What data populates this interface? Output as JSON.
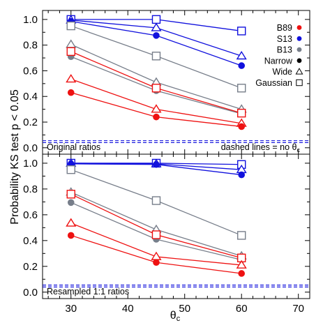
{
  "chart_data": {
    "type": "line",
    "x_axis": {
      "label_main": "θ",
      "label_sub": "c",
      "range": [
        25,
        72
      ],
      "ticks": [
        "30",
        "40",
        "50",
        "60",
        "70"
      ]
    },
    "y_axis": {
      "label": "Probability KS test p < 0.05",
      "range": [
        -0.05,
        1.07
      ],
      "ticks": [
        "0.0",
        "0.2",
        "0.4",
        "0.6",
        "0.8",
        "1.0"
      ]
    },
    "reference_line_y": [
      0.04,
      0.055
    ],
    "legend": {
      "placement": "top-right",
      "entries": [
        {
          "label": "B89",
          "marker": "filled-circle",
          "color": "#ee1111"
        },
        {
          "label": "S13",
          "marker": "filled-circle",
          "color": "#1111dd"
        },
        {
          "label": "B13",
          "marker": "filled-circle",
          "color": "#777e8a"
        },
        {
          "label": "Narrow",
          "marker": "filled-circle",
          "color": "#000000"
        },
        {
          "label": "Wide",
          "marker": "open-triangle",
          "color": "#000000"
        },
        {
          "label": "Gaussian",
          "marker": "open-square",
          "color": "#000000"
        }
      ]
    },
    "panels": [
      {
        "annotation_left": "Original ratios",
        "annotation_right_main": "dashed lines = no θ",
        "annotation_right_sub": "c",
        "series": [
          {
            "model": "S13",
            "shape": "Gaussian",
            "color": "#1111dd",
            "marker": "square",
            "x": [
              30,
              45,
              60
            ],
            "y": [
              1.0,
              1.0,
              0.91
            ]
          },
          {
            "model": "S13",
            "shape": "Wide",
            "color": "#1111dd",
            "marker": "triangle",
            "x": [
              30,
              45,
              60
            ],
            "y": [
              0.995,
              0.935,
              0.715
            ]
          },
          {
            "model": "S13",
            "shape": "Narrow",
            "color": "#1111dd",
            "marker": "circle",
            "x": [
              30,
              45,
              60
            ],
            "y": [
              0.985,
              0.875,
              0.64
            ]
          },
          {
            "model": "B13",
            "shape": "Gaussian",
            "color": "#777e8a",
            "marker": "square",
            "x": [
              30,
              45,
              60
            ],
            "y": [
              0.95,
              0.715,
              0.465
            ]
          },
          {
            "model": "B13",
            "shape": "Wide",
            "color": "#777e8a",
            "marker": "triangle",
            "x": [
              30,
              45,
              60
            ],
            "y": [
              0.805,
              0.51,
              0.3
            ]
          },
          {
            "model": "B13",
            "shape": "Narrow",
            "color": "#777e8a",
            "marker": "circle",
            "x": [
              30,
              45,
              60
            ],
            "y": [
              0.71,
              0.445,
              0.265
            ]
          },
          {
            "model": "B89",
            "shape": "Gaussian",
            "color": "#ee1111",
            "marker": "square",
            "x": [
              30,
              45,
              60
            ],
            "y": [
              0.75,
              0.465,
              0.27
            ]
          },
          {
            "model": "B89",
            "shape": "Wide",
            "color": "#ee1111",
            "marker": "triangle",
            "x": [
              30,
              45,
              60
            ],
            "y": [
              0.535,
              0.3,
              0.19
            ]
          },
          {
            "model": "B89",
            "shape": "Narrow",
            "color": "#ee1111",
            "marker": "circle",
            "x": [
              30,
              45,
              60
            ],
            "y": [
              0.43,
              0.24,
              0.165
            ]
          }
        ]
      },
      {
        "annotation_left": "Resampled 1:1 ratios",
        "annotation_right_main": "",
        "annotation_right_sub": "",
        "series": [
          {
            "model": "S13",
            "shape": "Gaussian",
            "color": "#1111dd",
            "marker": "square",
            "x": [
              30,
              45,
              60
            ],
            "y": [
              1.0,
              1.0,
              0.99
            ]
          },
          {
            "model": "S13",
            "shape": "Wide",
            "color": "#1111dd",
            "marker": "triangle",
            "x": [
              30,
              45,
              60
            ],
            "y": [
              1.0,
              0.995,
              0.95
            ]
          },
          {
            "model": "S13",
            "shape": "Narrow",
            "color": "#1111dd",
            "marker": "circle",
            "x": [
              30,
              45,
              60
            ],
            "y": [
              0.995,
              0.99,
              0.91
            ]
          },
          {
            "model": "B13",
            "shape": "Gaussian",
            "color": "#777e8a",
            "marker": "square",
            "x": [
              30,
              45,
              60
            ],
            "y": [
              0.95,
              0.71,
              0.44
            ]
          },
          {
            "model": "B13",
            "shape": "Wide",
            "color": "#777e8a",
            "marker": "triangle",
            "x": [
              30,
              45,
              60
            ],
            "y": [
              0.775,
              0.485,
              0.28
            ]
          },
          {
            "model": "B13",
            "shape": "Narrow",
            "color": "#777e8a",
            "marker": "circle",
            "x": [
              30,
              45,
              60
            ],
            "y": [
              0.695,
              0.41,
              0.25
            ]
          },
          {
            "model": "B89",
            "shape": "Gaussian",
            "color": "#ee1111",
            "marker": "square",
            "x": [
              30,
              45,
              60
            ],
            "y": [
              0.76,
              0.445,
              0.265
            ]
          },
          {
            "model": "B89",
            "shape": "Wide",
            "color": "#ee1111",
            "marker": "triangle",
            "x": [
              30,
              45,
              60
            ],
            "y": [
              0.535,
              0.275,
              0.21
            ]
          },
          {
            "model": "B89",
            "shape": "Narrow",
            "color": "#ee1111",
            "marker": "circle",
            "x": [
              30,
              45,
              60
            ],
            "y": [
              0.44,
              0.23,
              0.145
            ]
          }
        ]
      }
    ]
  }
}
